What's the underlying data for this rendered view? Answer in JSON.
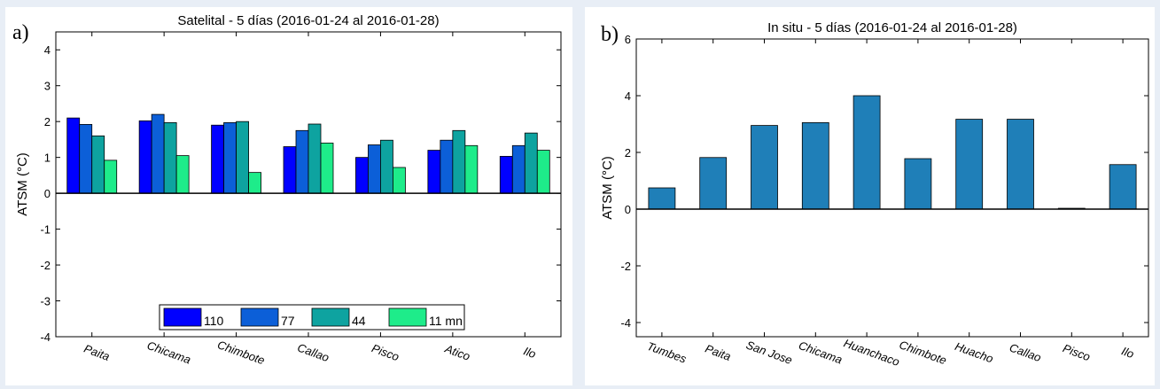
{
  "chart_data": [
    {
      "type": "bar",
      "panel_label": "a)",
      "title": "Satelital - 5 días (2016-01-24  al  2016-01-28)",
      "xlabel": "",
      "ylabel": "ATSM  (°C)",
      "ylim": [
        -4,
        4.5
      ],
      "yticks": [
        -4,
        -3,
        -2,
        -1,
        0,
        1,
        2,
        3,
        4
      ],
      "categories": [
        "Paita",
        "Chicama",
        "Chimbote",
        "Callao",
        "Pisco",
        "Atico",
        "Ilo"
      ],
      "series": [
        {
          "name": "110",
          "color": "#0000ff",
          "values": [
            2.1,
            2.02,
            1.9,
            1.3,
            1.0,
            1.2,
            1.03
          ]
        },
        {
          "name": "77",
          "color": "#0c5fd8",
          "values": [
            1.92,
            2.2,
            1.97,
            1.75,
            1.35,
            1.48,
            1.33
          ]
        },
        {
          "name": "44",
          "color": "#0ea3a0",
          "values": [
            1.6,
            1.97,
            2.0,
            1.93,
            1.48,
            1.75,
            1.68
          ]
        },
        {
          "name": "11 mn",
          "color": "#1eec8a",
          "values": [
            0.92,
            1.05,
            0.58,
            1.4,
            0.72,
            1.33,
            1.2
          ]
        }
      ],
      "legend": "bottom-center",
      "grid": false
    },
    {
      "type": "bar",
      "panel_label": "b)",
      "title": "In situ - 5 días (2016-01-24  al  2016-01-28)",
      "xlabel": "",
      "ylabel": "ATSM  (°C)",
      "ylim": [
        -4.5,
        6
      ],
      "yticks": [
        -4,
        -2,
        0,
        2,
        4,
        6
      ],
      "categories": [
        "Tumbes",
        "Paita",
        "San Jose",
        "Chicama",
        "Huanchaco",
        "Chimbote",
        "Huacho",
        "Callao",
        "Pisco",
        "Ilo"
      ],
      "series": [
        {
          "color": "#1f7fb8",
          "values": [
            0.75,
            1.82,
            2.95,
            3.05,
            4.0,
            1.78,
            3.17,
            3.17,
            0.03,
            1.57
          ]
        }
      ],
      "grid": false
    }
  ]
}
